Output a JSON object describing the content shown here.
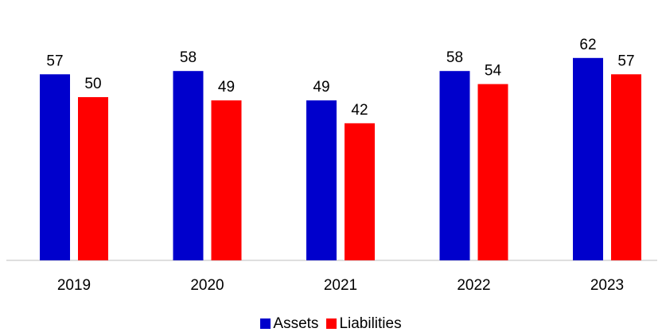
{
  "chart_data": {
    "type": "bar",
    "categories": [
      "2019",
      "2020",
      "2021",
      "2022",
      "2023"
    ],
    "series": [
      {
        "name": "Assets",
        "color": "#0000CC",
        "values": [
          57,
          58,
          49,
          58,
          62
        ]
      },
      {
        "name": "Liabilities",
        "color": "#FF0000",
        "values": [
          50,
          49,
          42,
          54,
          57
        ]
      }
    ],
    "ylim": [
      0,
      70
    ],
    "grid": false,
    "legend_position": "bottom-center",
    "data_labels": true
  }
}
